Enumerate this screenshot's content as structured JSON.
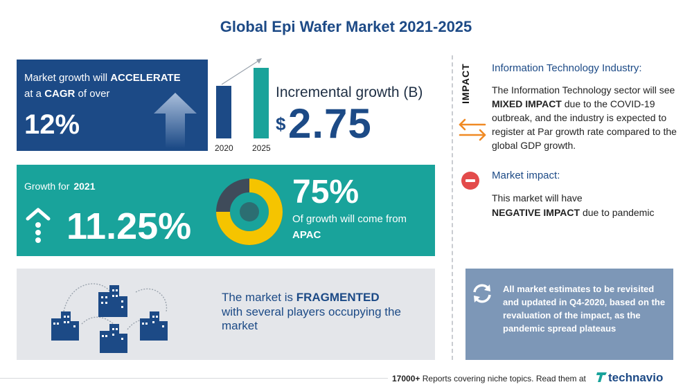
{
  "title": "Global Epi Wafer Market 2021-2025",
  "growth_block": {
    "line1_prefix": "Market growth will",
    "line1_strong": "ACCELERATE",
    "line2_prefix": "at a",
    "line2_strong": "CAGR",
    "line2_suffix": "of over",
    "cagr": "12%"
  },
  "incremental": {
    "years": [
      "2020",
      "2025"
    ],
    "label": "Incremental growth (B)",
    "currency": "$",
    "value": "2.75"
  },
  "yoy_block": {
    "label": "Growth for",
    "year": "2021",
    "value": "11.25%",
    "share_pct": "75%",
    "share_fraction": 0.75,
    "share_text": "Of growth will come from",
    "region": "APAC"
  },
  "fragmented_block": {
    "prefix": "The market is",
    "strong": "FRAGMENTED",
    "line2": "with several players occupying the",
    "line3": "market"
  },
  "impact": {
    "vertical_label": "IMPACT",
    "it_title": "Information Technology Industry:",
    "it_body_1": "The Information Technology sector will see",
    "it_body_strong": "MIXED IMPACT",
    "it_body_2": "due to the COVID-19 outbreak, and the industry is expected to register at Par growth rate compared to the global GDP growth.",
    "market_title": "Market impact:",
    "market_line1": "This market will have",
    "market_strong": "NEGATIVE IMPACT",
    "market_line2": "due to pandemic"
  },
  "note": "All market estimates to be revisited and updated in Q4-2020, based on the revaluation of the impact, as the pandemic spread plateaus",
  "footer": {
    "count": "17000+",
    "text": "Reports covering niche topics. Read them at",
    "brand": "technavio"
  },
  "colors": {
    "navy": "#1c4a86",
    "teal": "#19a39b",
    "yellow": "#f5c400",
    "grey": "#e4e6ea",
    "note_blue": "#7d97b7",
    "orange": "#f08a24",
    "red": "#e34b4b"
  }
}
